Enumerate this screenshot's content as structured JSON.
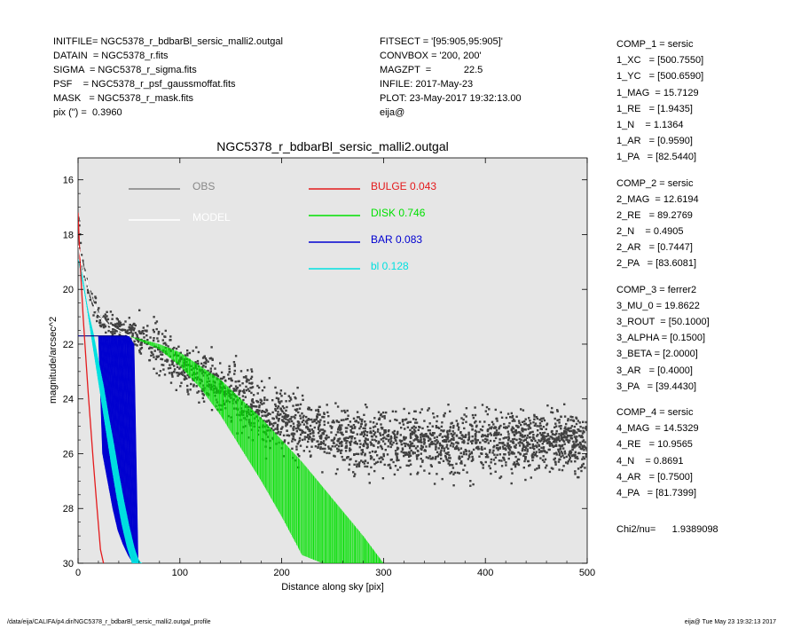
{
  "header_left": [
    "INITFILE= NGC5378_r_bdbarBl_sersic_malli2.outgal",
    "DATAIN  = NGC5378_r.fits",
    "SIGMA  = NGC5378_r_sigma.fits",
    "PSF    = NGC5378_r_psf_gaussmoffat.fits",
    "MASK   = NGC5378_r_mask.fits",
    "pix (\") =  0.3960"
  ],
  "header_mid": [
    "FITSECT = '[95:905,95:905]'",
    "CONVBOX = '200, 200'",
    "MAGZPT  =            22.5",
    "INFILE: 2017-May-23",
    "PLOT: 23-May-2017 19:32:13.00",
    "eija@"
  ],
  "components": [
    [
      "COMP_1 = sersic",
      "1_XC   = [500.7550]",
      "1_YC   = [500.6590]",
      "1_MAG  = 15.7129",
      "1_RE   = [1.9435]",
      "1_N    = 1.1364",
      "1_AR   = [0.9590]",
      "1_PA   = [82.5440]"
    ],
    [
      "COMP_2 = sersic",
      "2_MAG  = 12.6194",
      "2_RE   = 89.2769",
      "2_N    = 0.4905",
      "2_AR   = [0.7447]",
      "2_PA   = [83.6081]"
    ],
    [
      "COMP_3 = ferrer2",
      "3_MU_0 = 19.8622",
      "3_ROUT  = [50.1000]",
      "3_ALPHA = [0.1500]",
      "3_BETA = [2.0000]",
      "3_AR   = [0.4000]",
      "3_PA   = [39.4430]"
    ],
    [
      "COMP_4 = sersic",
      "4_MAG  = 14.5329",
      "4_RE   = 10.9565",
      "4_N    = 0.8691",
      "4_AR   = [0.7500]",
      "4_PA   = [81.7399]"
    ]
  ],
  "chi2": "Chi2/nu=      1.9389098",
  "footer_left": "/data/eija/CALIFA/p4.dir/NGC5378_r_bdbarBl_sersic_malli2.outgal_profile",
  "footer_right": "eija@  Tue May 23 19:32:13 2017",
  "chart_data": {
    "type": "scatter",
    "title": "NGC5378_r_bdbarBl_sersic_malli2.outgal",
    "xlabel": "Distance along sky [pix]",
    "ylabel": "magnitude/arcsec^2",
    "xlim": [
      0,
      500
    ],
    "ylim": [
      30,
      15.2
    ],
    "y_inverted": true,
    "xticks": [
      0,
      100,
      200,
      300,
      400,
      500
    ],
    "yticks": [
      16,
      18,
      20,
      22,
      24,
      26,
      28,
      30
    ],
    "legend": [
      {
        "name": "OBS",
        "value": "",
        "color": "#808080"
      },
      {
        "name": "MODEL",
        "value": "",
        "color": "#ffffff"
      },
      {
        "name": "BULGE",
        "value": "0.043",
        "color": "#e41a1c"
      },
      {
        "name": "DISK",
        "value": "0.746",
        "color": "#00e000"
      },
      {
        "name": "BAR",
        "value": "0.083",
        "color": "#0000d0"
      },
      {
        "name": "bl",
        "value": "0.128",
        "color": "#00e0e0"
      }
    ],
    "series": [
      {
        "name": "OBS",
        "type": "scatter",
        "color": "#404040",
        "x": [
          1,
          3,
          6,
          10,
          15,
          20,
          25,
          30,
          40,
          50,
          60,
          70,
          80,
          90,
          100,
          120,
          140,
          160,
          180,
          200,
          220,
          240,
          260,
          280,
          300,
          320,
          350,
          400,
          450,
          500
        ],
        "y": [
          17.4,
          18.7,
          19.4,
          20.0,
          20.5,
          20.9,
          21.1,
          21.3,
          21.5,
          21.6,
          21.7,
          21.9,
          22.2,
          22.5,
          22.8,
          23.0,
          23.5,
          24.0,
          24.5,
          24.8,
          25.1,
          25.3,
          25.4,
          25.5,
          25.55,
          25.6,
          25.6,
          25.6,
          25.6,
          25.6
        ]
      },
      {
        "name": "BULGE",
        "type": "line",
        "color": "#e41a1c",
        "x": [
          0,
          2,
          5,
          8,
          10,
          12,
          15,
          18,
          20,
          22,
          25
        ],
        "y": [
          17.2,
          19.0,
          21.0,
          22.7,
          23.8,
          24.8,
          26.3,
          27.7,
          28.6,
          29.5,
          30.0
        ]
      },
      {
        "name": "DISK",
        "type": "band",
        "color": "#00e000",
        "x": [
          50,
          80,
          100,
          120,
          140,
          160,
          180,
          200,
          220,
          240,
          260,
          280,
          300
        ],
        "y_upper": [
          21.7,
          22.0,
          22.3,
          22.8,
          23.3,
          24.0,
          24.7,
          25.5,
          26.3,
          27.2,
          28.1,
          29.0,
          30.0
        ],
        "y_lower": [
          21.7,
          22.2,
          22.8,
          23.6,
          24.6,
          25.8,
          27.0,
          28.3,
          29.7,
          30.0,
          30.0,
          30.0,
          30.0
        ]
      },
      {
        "name": "BAR",
        "type": "band",
        "color": "#0000d0",
        "x": [
          20,
          25,
          30,
          35,
          40,
          45,
          50,
          55
        ],
        "y_upper": [
          21.7,
          21.7,
          21.7,
          21.7,
          21.7,
          21.7,
          21.7,
          22.0
        ],
        "y_lower": [
          26.0,
          27.0,
          28.0,
          28.8,
          29.3,
          29.7,
          30.0,
          30.0
        ]
      },
      {
        "name": "bl",
        "type": "band",
        "color": "#00e0e0",
        "x": [
          0,
          5,
          10,
          15,
          20,
          25,
          30,
          35,
          40,
          45,
          50,
          55,
          60
        ],
        "y_upper": [
          18.9,
          19.8,
          20.8,
          21.6,
          22.6,
          23.5,
          24.6,
          25.6,
          26.7,
          27.7,
          28.6,
          29.4,
          30.0
        ],
        "y_lower": [
          19.2,
          20.4,
          21.7,
          22.9,
          24.1,
          25.3,
          26.5,
          27.6,
          28.6,
          29.4,
          30.0,
          30.0,
          30.0
        ]
      },
      {
        "name": "MODEL",
        "type": "line",
        "color": "#ffffff",
        "x": [
          0,
          5,
          10,
          15,
          20,
          30,
          40,
          50
        ],
        "y": [
          18.4,
          19.2,
          19.9,
          20.5,
          20.9,
          21.3,
          21.5,
          21.7
        ]
      },
      {
        "name": "bar-level",
        "type": "line",
        "color": "#000080",
        "x": [
          0,
          50
        ],
        "y": [
          21.7,
          21.7
        ]
      }
    ]
  }
}
